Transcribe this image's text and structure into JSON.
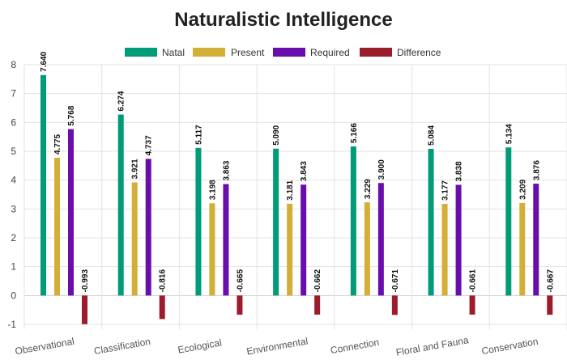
{
  "chart_data": {
    "type": "bar",
    "title": "Naturalistic Intelligence",
    "xlabel": "",
    "ylabel": "",
    "ylim": [
      -1,
      8
    ],
    "yticks": [
      -1,
      0,
      1,
      2,
      3,
      4,
      5,
      6,
      7,
      8
    ],
    "grid": true,
    "legend_position": "top-center",
    "categories": [
      "Observational",
      "Classification",
      "Ecological",
      "Environmental",
      "Connection",
      "Floral and Fauna",
      "Conservation"
    ],
    "series": [
      {
        "name": "Natal",
        "color": "#009b77",
        "values": [
          7.64,
          6.274,
          5.117,
          5.09,
          5.166,
          5.084,
          5.134
        ]
      },
      {
        "name": "Present",
        "color": "#d4af37",
        "values": [
          4.775,
          3.921,
          3.198,
          3.181,
          3.229,
          3.177,
          3.209
        ]
      },
      {
        "name": "Required",
        "color": "#6a0dad",
        "values": [
          5.768,
          4.737,
          3.863,
          3.843,
          3.9,
          3.838,
          3.876
        ]
      },
      {
        "name": "Difference",
        "color": "#9b1c2c",
        "values": [
          -0.993,
          -0.816,
          -0.665,
          -0.662,
          -0.671,
          -0.661,
          -0.667
        ]
      }
    ]
  }
}
